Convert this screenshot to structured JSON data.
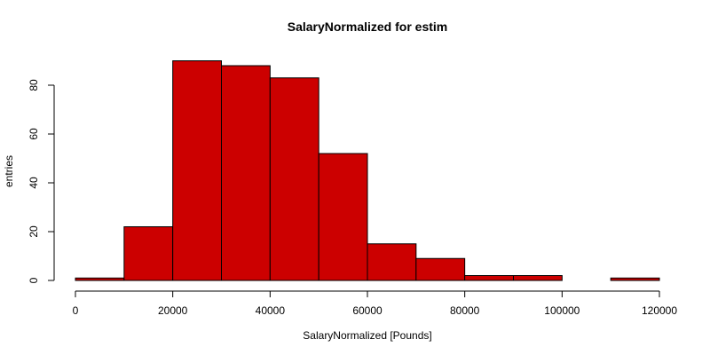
{
  "chart_data": {
    "type": "bar",
    "title": "SalaryNormalized for estim",
    "xlabel": "SalaryNormalized [Pounds]",
    "ylabel": "entries",
    "bins": [
      {
        "x0": 0,
        "x1": 10000,
        "count": 1
      },
      {
        "x0": 10000,
        "x1": 20000,
        "count": 22
      },
      {
        "x0": 20000,
        "x1": 30000,
        "count": 90
      },
      {
        "x0": 30000,
        "x1": 40000,
        "count": 88
      },
      {
        "x0": 40000,
        "x1": 50000,
        "count": 83
      },
      {
        "x0": 50000,
        "x1": 60000,
        "count": 52
      },
      {
        "x0": 60000,
        "x1": 70000,
        "count": 15
      },
      {
        "x0": 70000,
        "x1": 80000,
        "count": 9
      },
      {
        "x0": 80000,
        "x1": 90000,
        "count": 2
      },
      {
        "x0": 90000,
        "x1": 100000,
        "count": 2
      },
      {
        "x0": 100000,
        "x1": 110000,
        "count": 0
      },
      {
        "x0": 110000,
        "x1": 120000,
        "count": 1
      }
    ],
    "xlim": [
      0,
      120000
    ],
    "ylim": [
      0,
      90
    ],
    "xticks": [
      0,
      20000,
      40000,
      60000,
      80000,
      100000,
      120000
    ],
    "yticks": [
      0,
      20,
      40,
      60,
      80
    ],
    "grid": false,
    "bar_color": "#cc0000",
    "bar_edge_color": "#000000"
  }
}
